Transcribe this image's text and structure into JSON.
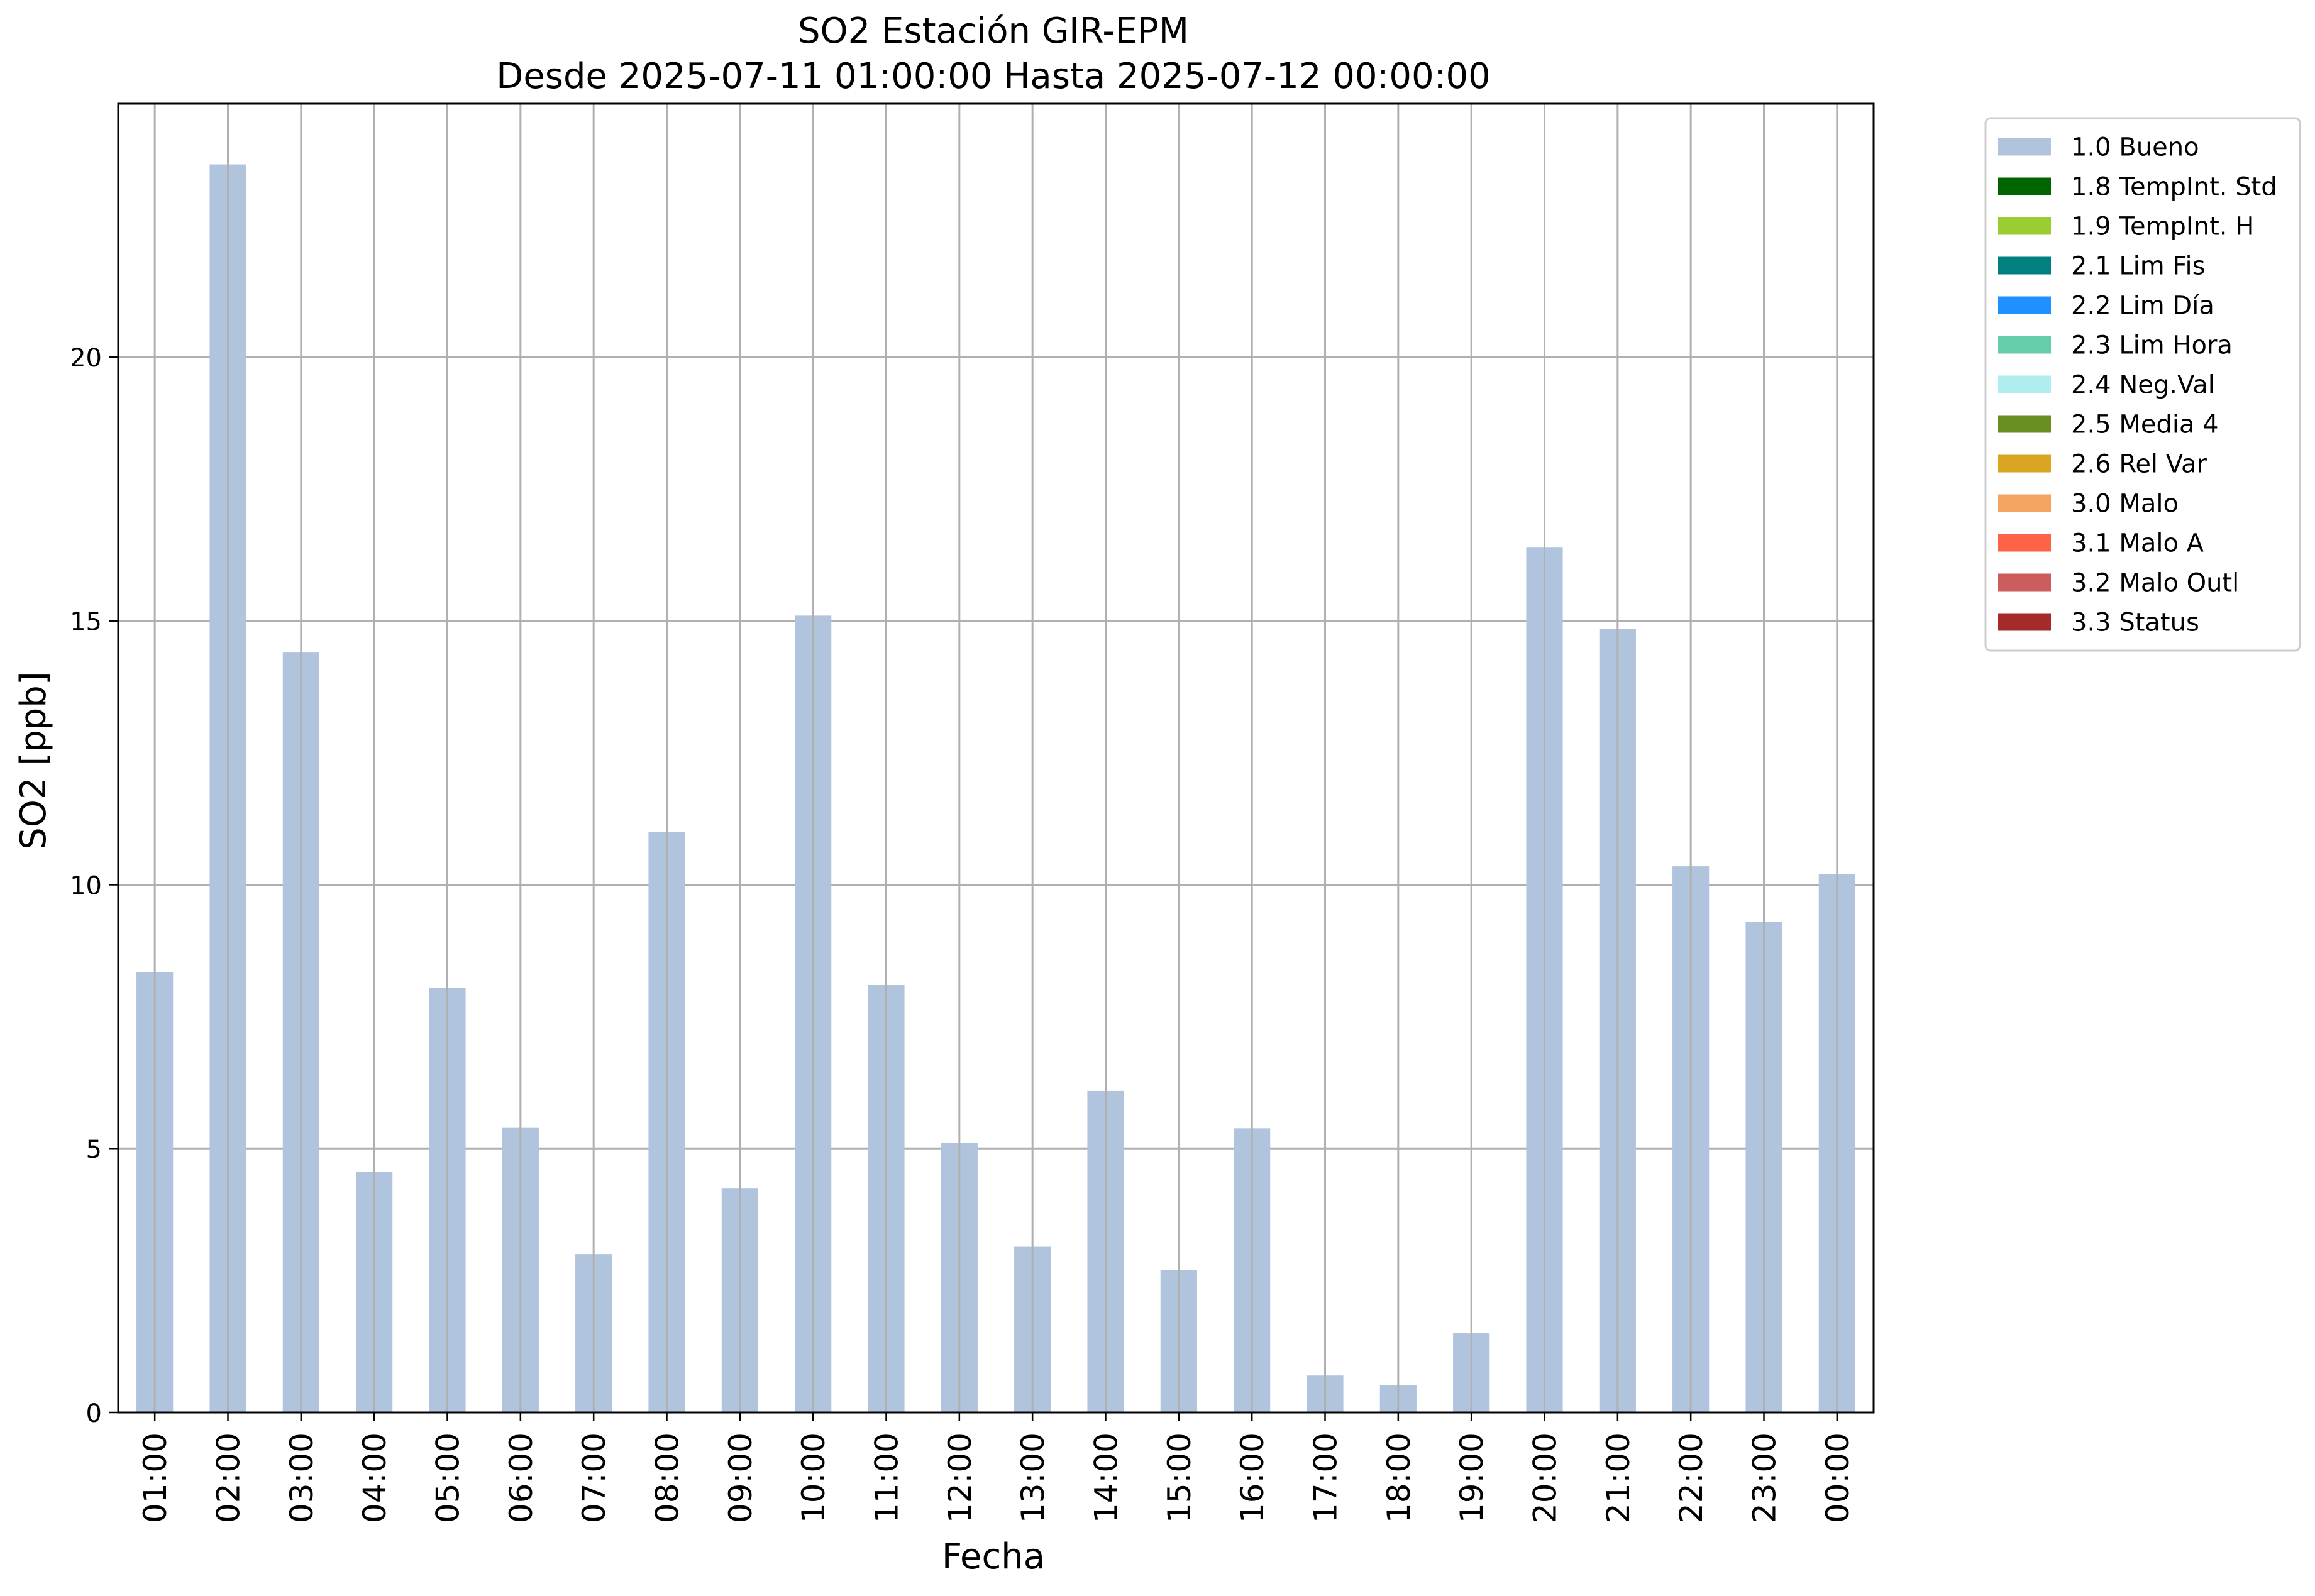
{
  "chart_data": {
    "type": "bar",
    "title": "SO2 Estación GIR-EPM",
    "subtitle": "Desde 2025-07-11 01:00:00 Hasta 2025-07-12 00:00:00",
    "xlabel": "Fecha",
    "ylabel": "SO2 [ppb]",
    "ylim": [
      0,
      24.8
    ],
    "yticks": [
      0,
      5,
      10,
      15,
      20
    ],
    "grid": true,
    "legend_position": "outside-top-right",
    "categories": [
      "01:00",
      "02:00",
      "03:00",
      "04:00",
      "05:00",
      "06:00",
      "07:00",
      "08:00",
      "09:00",
      "10:00",
      "11:00",
      "12:00",
      "13:00",
      "14:00",
      "15:00",
      "16:00",
      "17:00",
      "18:00",
      "19:00",
      "20:00",
      "21:00",
      "22:00",
      "23:00",
      "00:00"
    ],
    "series": [
      {
        "name": "1.0 Bueno",
        "color": "#b0c4de",
        "values": [
          8.35,
          23.65,
          14.4,
          4.55,
          8.05,
          5.4,
          3.0,
          11.0,
          4.25,
          15.1,
          8.1,
          5.1,
          3.15,
          6.1,
          2.7,
          5.38,
          0.7,
          0.52,
          1.5,
          16.4,
          14.85,
          10.35,
          9.3,
          10.2
        ]
      }
    ],
    "legend": [
      {
        "label": "1.0 Bueno",
        "color": "#b0c4de"
      },
      {
        "label": "1.8 TempInt. Std",
        "color": "#006400"
      },
      {
        "label": "1.9 TempInt. H",
        "color": "#9acd32"
      },
      {
        "label": "2.1 Lim Fis",
        "color": "#008080"
      },
      {
        "label": "2.2 Lim Día",
        "color": "#1e90ff"
      },
      {
        "label": "2.3 Lim Hora",
        "color": "#66cdaa"
      },
      {
        "label": "2.4 Neg.Val",
        "color": "#afeeee"
      },
      {
        "label": "2.5 Media 4",
        "color": "#6b8e23"
      },
      {
        "label": "2.6 Rel Var",
        "color": "#daa520"
      },
      {
        "label": "3.0 Malo",
        "color": "#f4a460"
      },
      {
        "label": "3.1 Malo A",
        "color": "#ff6347"
      },
      {
        "label": "3.2 Malo Outl",
        "color": "#cd5c5c"
      },
      {
        "label": "3.3 Status",
        "color": "#a52a2a"
      }
    ]
  }
}
